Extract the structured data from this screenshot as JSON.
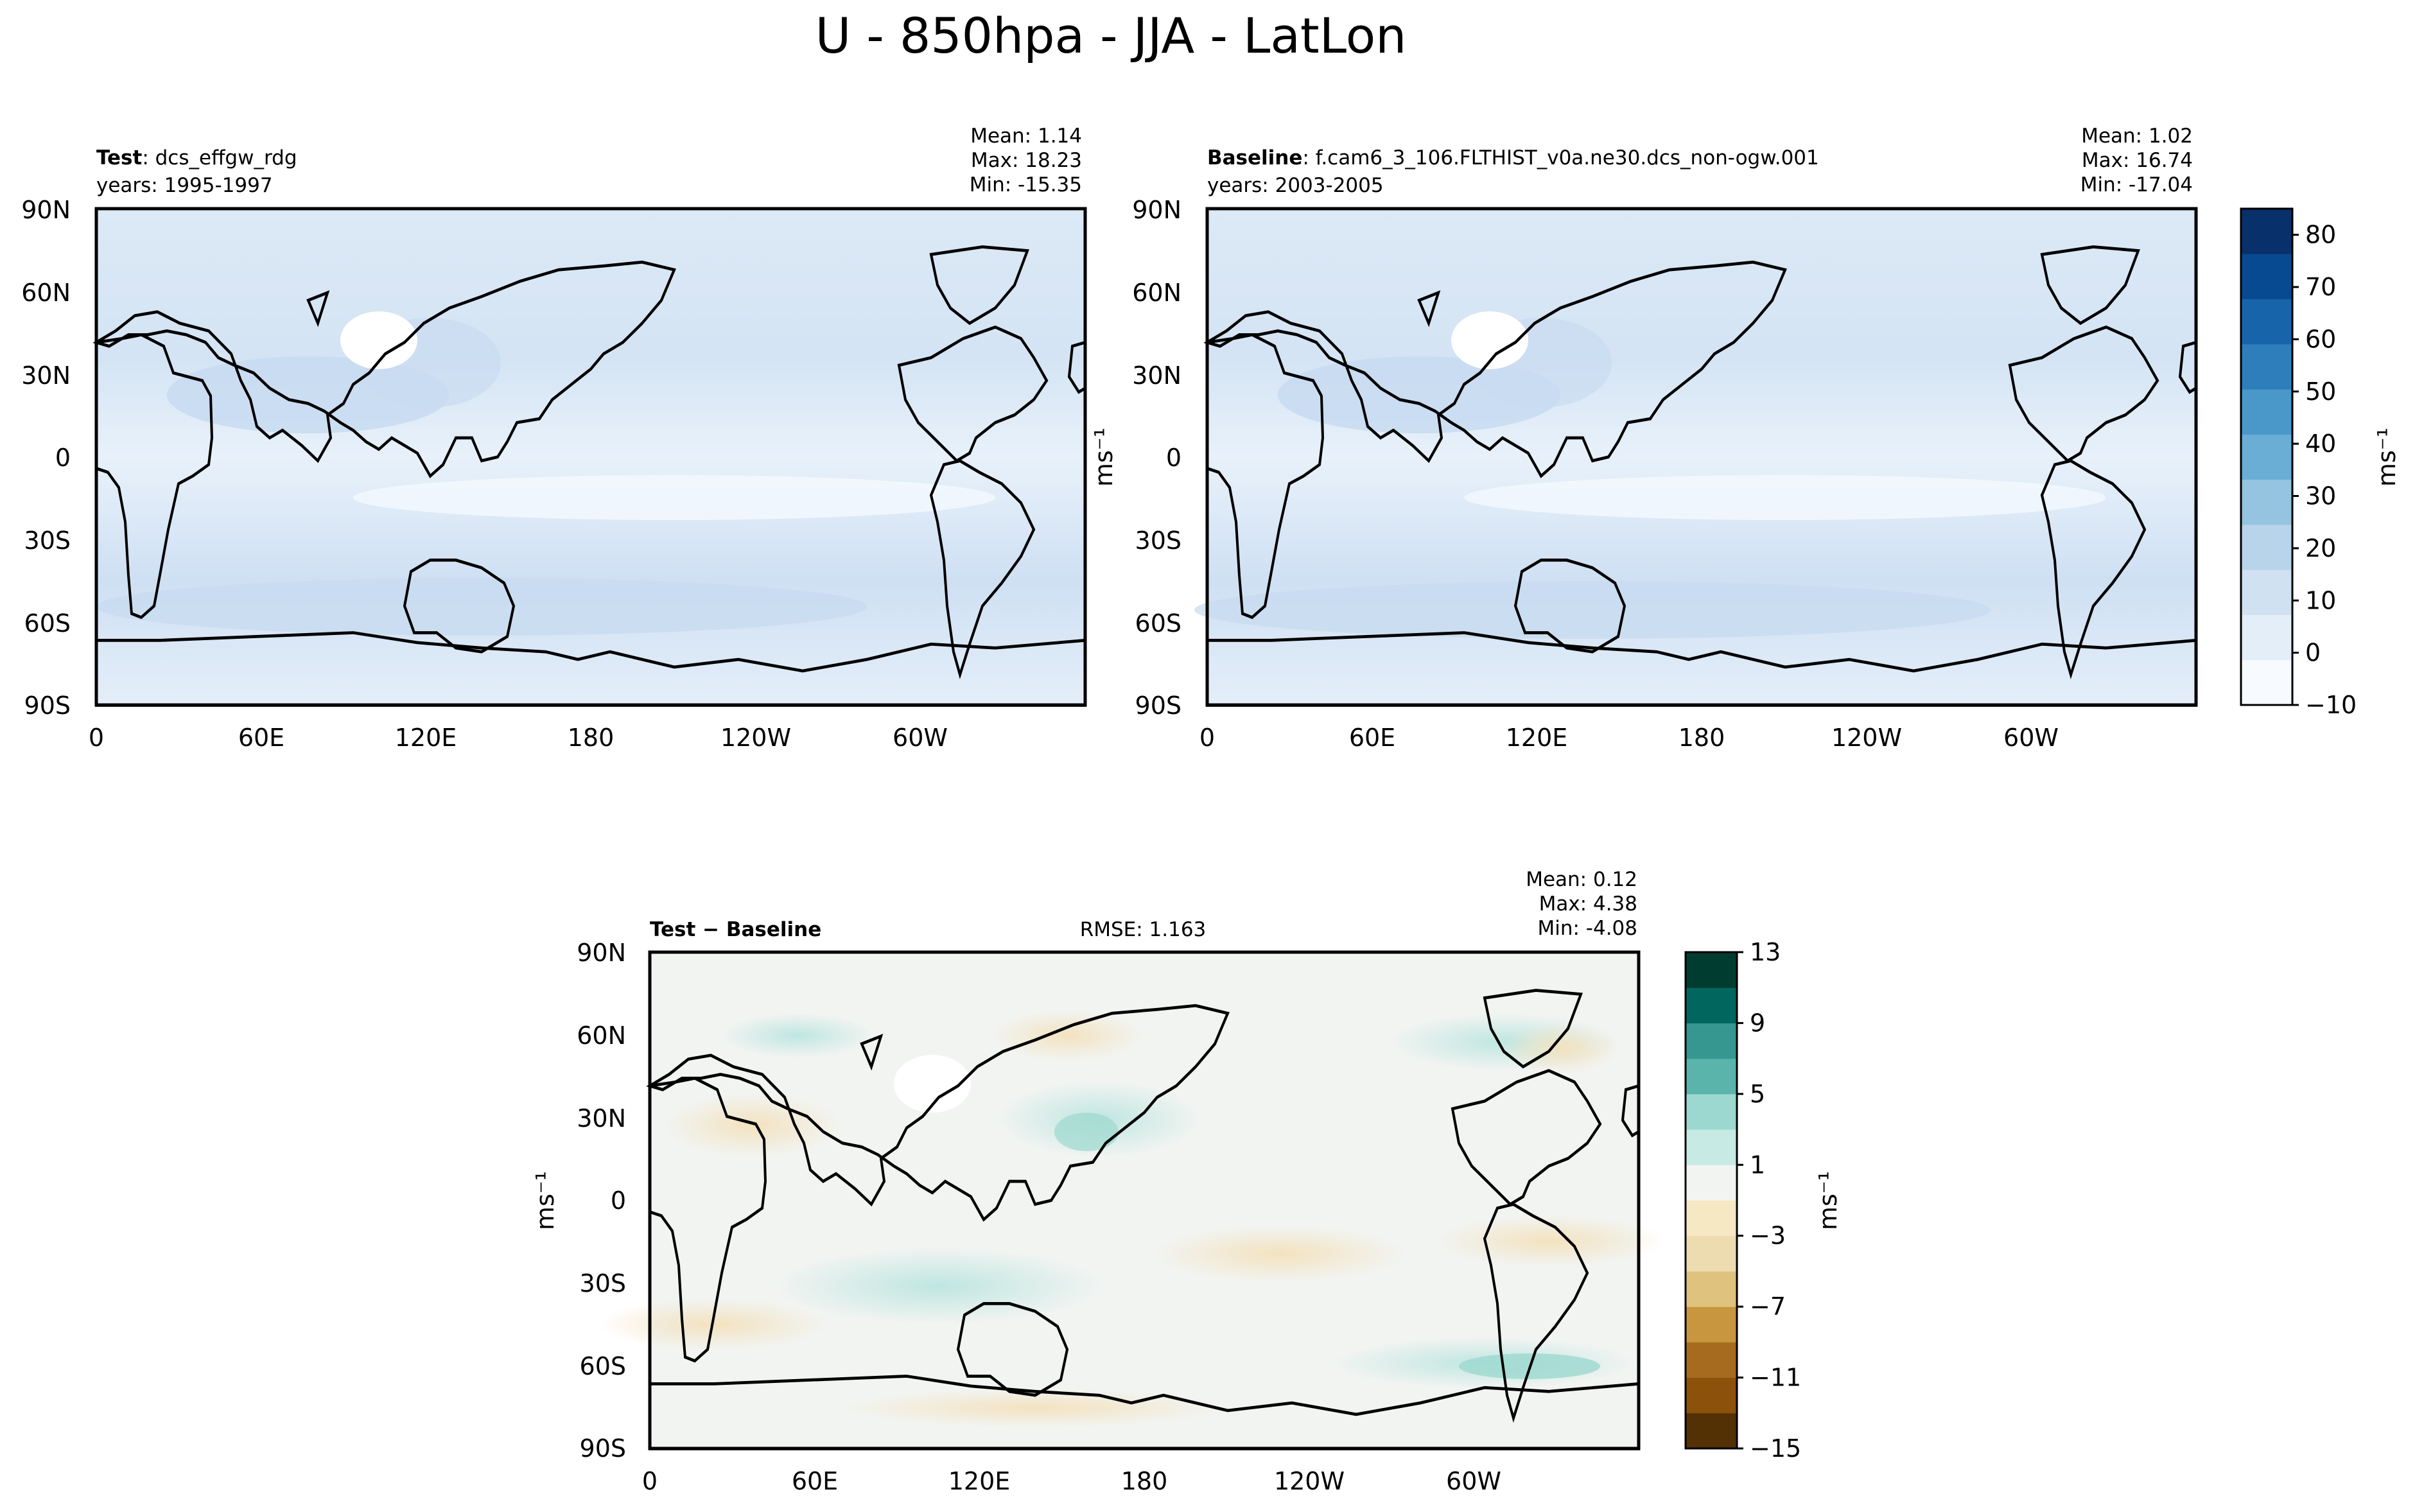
{
  "figure": {
    "title": "U - 850hpa - JJA - LatLon"
  },
  "chart_data": [
    {
      "type": "heatmap",
      "panel": "test",
      "label_bold": "Test",
      "label_rest": ": dcs_effgw_rdg",
      "years": "years: 1995-1997",
      "stats": {
        "mean": "Mean:  1.14",
        "max": "Max: 18.23",
        "min": "Min: -15.35"
      },
      "xticks": [
        "0",
        "60E",
        "120E",
        "180",
        "120W",
        "60W"
      ],
      "yticks": [
        "90N",
        "60N",
        "30N",
        "0",
        "30S",
        "60S",
        "90S"
      ],
      "xlim": [
        0,
        360
      ],
      "ylim": [
        -90,
        90
      ],
      "units": "ms⁻¹"
    },
    {
      "type": "heatmap",
      "panel": "baseline",
      "label_bold": "Baseline",
      "label_rest": ": f.cam6_3_106.FLTHIST_v0a.ne30.dcs_non-ogw.001",
      "years": "years: 2003-2005",
      "stats": {
        "mean": "Mean:  1.02",
        "max": "Max: 16.74",
        "min": "Min: -17.04"
      },
      "xticks": [
        "0",
        "60E",
        "120E",
        "180",
        "120W",
        "60W"
      ],
      "yticks": [
        "90N",
        "60N",
        "30N",
        "0",
        "30S",
        "60S",
        "90S"
      ],
      "xlim": [
        0,
        360
      ],
      "ylim": [
        -90,
        90
      ],
      "units": "ms⁻¹",
      "colorbar": {
        "ticks": [
          "−10",
          "0",
          "10",
          "20",
          "30",
          "40",
          "50",
          "60",
          "70",
          "80"
        ],
        "range": [
          -10,
          85
        ],
        "colors": [
          "#f7fbff",
          "#e3eef9",
          "#d0e1f2",
          "#b7d4ea",
          "#94c4df",
          "#6aaed6",
          "#4a98c9",
          "#2e7ebc",
          "#1764ab",
          "#084a91",
          "#08306b"
        ],
        "label": "ms⁻¹"
      }
    },
    {
      "type": "heatmap",
      "panel": "difference",
      "label_bold": "Test − Baseline",
      "rmse": "RMSE: 1.163",
      "stats": {
        "mean": "Mean:  0.12",
        "max": "Max:  4.38",
        "min": "Min: -4.08"
      },
      "xticks": [
        "0",
        "60E",
        "120E",
        "180",
        "120W",
        "60W"
      ],
      "yticks": [
        "90N",
        "60N",
        "30N",
        "0",
        "30S",
        "60S",
        "90S"
      ],
      "xlim": [
        0,
        360
      ],
      "ylim": [
        -90,
        90
      ],
      "units": "ms⁻¹",
      "colorbar": {
        "ticks": [
          "−15",
          "−11",
          "−7",
          "−3",
          "1",
          "5",
          "9",
          "13"
        ],
        "range": [
          -15,
          13
        ],
        "colors": [
          "#543005",
          "#8c510a",
          "#a66b1f",
          "#c8963e",
          "#dfc27d",
          "#eddcb0",
          "#f6e8c3",
          "#f2f4f2",
          "#c7eae5",
          "#9cd8cf",
          "#5ab4ac",
          "#35978f",
          "#01665e",
          "#003c30"
        ],
        "label": "ms⁻¹"
      }
    }
  ]
}
